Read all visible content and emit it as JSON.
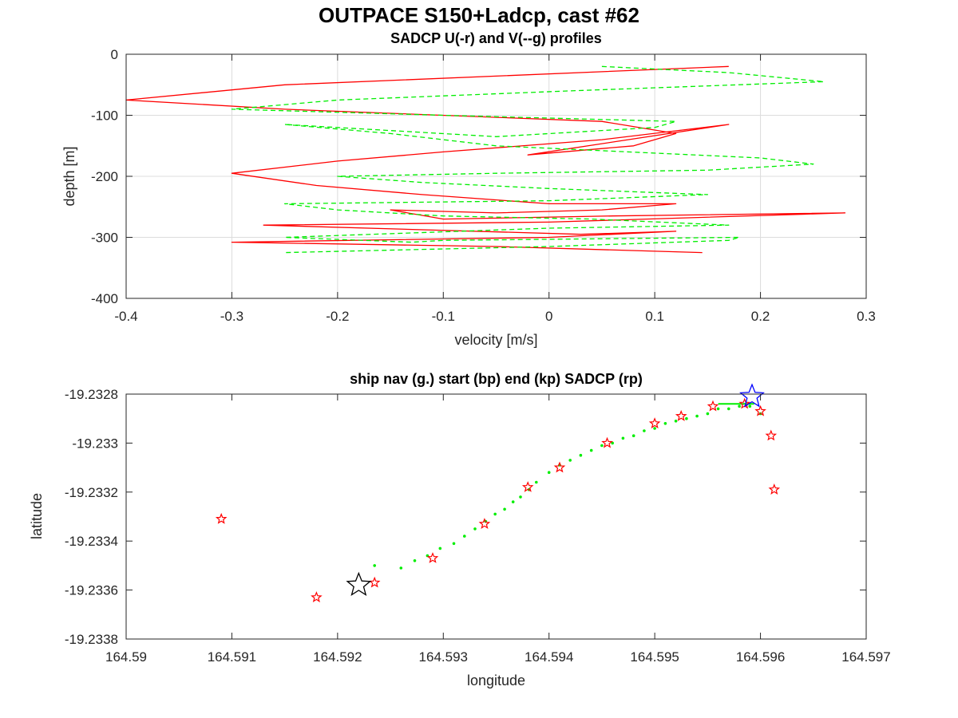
{
  "figure": {
    "title": "OUTPACE S150+Ladcp, cast #62"
  },
  "chart_data": [
    {
      "type": "line",
      "title": "SADCP U(-r) and V(--g) profiles",
      "xlabel": "velocity [m/s]",
      "ylabel": "depth [m]",
      "xlim": [
        -0.4,
        0.3
      ],
      "ylim": [
        -400,
        0
      ],
      "xticks": [
        "-0.4",
        "-0.3",
        "-0.2",
        "-0.1",
        "0",
        "0.1",
        "0.2",
        "0.3"
      ],
      "yticks": [
        "-400",
        "-300",
        "-200",
        "-100",
        "0"
      ],
      "grid": true,
      "colors": {
        "u": "#ff0000",
        "v": "#00ee00"
      },
      "series": [
        {
          "style": "solid",
          "color": "#ff0000",
          "x": [
            0.17,
            -0.25,
            -0.4,
            -0.25,
            0.05,
            0.12,
            0.08,
            -0.02,
            0.17,
            0.05,
            -0.1,
            -0.2,
            -0.3,
            -0.22,
            -0.12,
            0.0,
            0.12,
            0.05,
            -0.05,
            -0.15,
            -0.1,
            0.06,
            0.28,
            0.0,
            -0.27,
            0.03,
            0.12,
            0.0,
            -0.3,
            -0.05,
            0.145
          ],
          "y": [
            -20,
            -50,
            -75,
            -90,
            -110,
            -130,
            -150,
            -165,
            -115,
            -140,
            -160,
            -175,
            -195,
            -215,
            -230,
            -245,
            -245,
            -255,
            -260,
            -255,
            -270,
            -265,
            -260,
            -275,
            -280,
            -295,
            -290,
            -300,
            -308,
            -315,
            -325
          ]
        },
        {
          "style": "dashed",
          "color": "#00ee00",
          "x": [
            0.05,
            0.17,
            0.26,
            0.02,
            -0.2,
            -0.3,
            -0.1,
            0.12,
            0.1,
            -0.05,
            -0.25,
            -0.15,
            -0.05,
            0.2,
            0.25,
            0.15,
            -0.05,
            -0.2,
            -0.12,
            0.0,
            0.15,
            0.0,
            -0.25,
            -0.2,
            -0.1,
            0.04,
            0.17,
            0.0,
            -0.25,
            -0.13,
            -0.1,
            0.18,
            0.17,
            0.0,
            -0.25
          ],
          "y": [
            -20,
            -30,
            -45,
            -60,
            -75,
            -90,
            -100,
            -110,
            -120,
            -135,
            -115,
            -130,
            -150,
            -170,
            -180,
            -190,
            -195,
            -200,
            -210,
            -220,
            -230,
            -240,
            -245,
            -255,
            -265,
            -270,
            -280,
            -285,
            -300,
            -308,
            -305,
            -300,
            -305,
            -315,
            -325
          ]
        }
      ]
    },
    {
      "type": "scatter",
      "title": "ship nav (g.) start (bp) end (kp) SADCP (rp)",
      "xlabel": "longitude",
      "ylabel": "latitude",
      "xlim": [
        164.59,
        164.597
      ],
      "ylim": [
        -19.2338,
        -19.2328
      ],
      "xticks": [
        "164.59",
        "164.591",
        "164.592",
        "164.593",
        "164.594",
        "164.595",
        "164.596",
        "164.597"
      ],
      "yticks": [
        "-19.2338",
        "-19.2336",
        "-19.2334",
        "-19.2332",
        "-19.233",
        "-19.2328"
      ],
      "grid": false,
      "colors": {
        "nav": "#00ee00",
        "sadcp": "#ff0000",
        "start": "#0000ff",
        "end": "#000000"
      },
      "ship_nav": {
        "lon": [
          164.59235,
          164.5926,
          164.59273,
          164.59285,
          164.59297,
          164.5931,
          164.5932,
          164.5933,
          164.5934,
          164.59349,
          164.59358,
          164.59366,
          164.59373,
          164.59381,
          164.59388,
          164.594,
          164.5941,
          164.5942,
          164.5943,
          164.5944,
          164.5945,
          164.5946,
          164.5947,
          164.5948,
          164.5949,
          164.595,
          164.5951,
          164.5952,
          164.5953,
          164.5954,
          164.5955,
          164.5956,
          164.5957,
          164.5958,
          164.5959,
          164.596
        ],
        "lat": [
          -19.2335,
          -19.23351,
          -19.23348,
          -19.23346,
          -19.23343,
          -19.23341,
          -19.23338,
          -19.23335,
          -19.23332,
          -19.23329,
          -19.23327,
          -19.23324,
          -19.23322,
          -19.23319,
          -19.23316,
          -19.23312,
          -19.23309,
          -19.23307,
          -19.23305,
          -19.23303,
          -19.23301,
          -19.233,
          -19.23298,
          -19.23297,
          -19.23295,
          -19.23294,
          -19.23292,
          -19.23291,
          -19.2329,
          -19.23289,
          -19.23288,
          -19.23286,
          -19.23286,
          -19.23285,
          -19.23285,
          -19.23288
        ]
      },
      "sadcp": {
        "lon": [
          164.5909,
          164.5918,
          164.59235,
          164.5929,
          164.59339,
          164.5938,
          164.5941,
          164.59455,
          164.595,
          164.59525,
          164.59555,
          164.59585,
          164.596,
          164.5961,
          164.59613
        ],
        "lat": [
          -19.23331,
          -19.23363,
          -19.23357,
          -19.23347,
          -19.23333,
          -19.23318,
          -19.2331,
          -19.233,
          -19.23292,
          -19.23289,
          -19.23285,
          -19.23284,
          -19.23287,
          -19.23297,
          -19.23319
        ]
      },
      "start": {
        "lon": 164.59592,
        "lat": -19.23281
      },
      "end": {
        "lon": 164.5922,
        "lat": -19.23358
      }
    }
  ]
}
